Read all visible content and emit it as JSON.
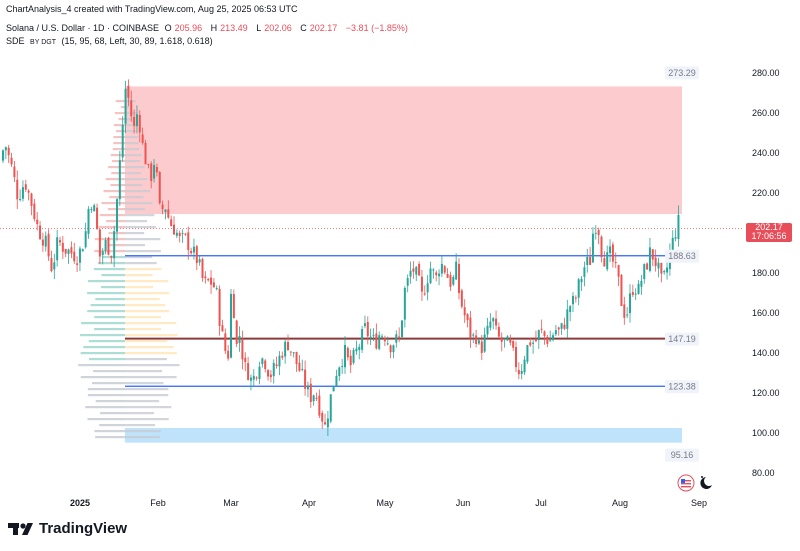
{
  "header": {
    "caption": "ChartAnalysis_4 created with TradingView.com, Aug 25, 2025 06:53 UTC"
  },
  "legend": {
    "symbol": "Solana / U.S. Dollar · 1D · COINBASE",
    "open_label": "O",
    "open": "205.96",
    "high_label": "H",
    "high": "213.49",
    "low_label": "L",
    "low": "202.06",
    "close_label": "C",
    "close": "202.17",
    "change": "−3.81 (−1.85%)",
    "indicator_name": "SDE",
    "indicator_by": "BY DGT",
    "indicator_params": "(15, 95, 68, Left, 30, 89, 1.618, 0.618)"
  },
  "price_badge": {
    "price": "202.17",
    "countdown": "17:06:56"
  },
  "footer": {
    "brand": "TradingView"
  },
  "chart_data": {
    "type": "candlestick",
    "y_axis": {
      "ticks": [
        80,
        100,
        120,
        140,
        160,
        180,
        200,
        220,
        240,
        260,
        280
      ],
      "range": [
        73,
        283
      ],
      "side": "right"
    },
    "x_axis": {
      "ticks": [
        "2025",
        "Feb",
        "Mar",
        "Apr",
        "May",
        "Jun",
        "Jul",
        "Aug",
        "Sep"
      ]
    },
    "levels": [
      {
        "value": 273.29,
        "label": "273.29",
        "kind": "zone-top"
      },
      {
        "value": 188.63,
        "label": "188.63",
        "kind": "line"
      },
      {
        "value": 147.19,
        "label": "147.19",
        "kind": "line"
      },
      {
        "value": 123.38,
        "label": "123.38",
        "kind": "line"
      },
      {
        "value": 95.16,
        "label": "95.16",
        "kind": "zone-bottom"
      }
    ],
    "zones": [
      {
        "name": "resistance",
        "from": 209.5,
        "to": 273.29,
        "color": "#fccbcd"
      },
      {
        "name": "support",
        "from": 95.16,
        "to": 102.5,
        "color": "#bfe3fb"
      }
    ],
    "last_price": 202.17,
    "colors": {
      "up": "#26a69a",
      "down": "#ef5350",
      "line_blue": "#2962ff",
      "line_brown": "#8b3a3a",
      "profile_green": "#9fd8cf",
      "profile_red": "#f4b8b8",
      "profile_gray": "#c7cbd3",
      "profile_orange": "#ffe5b4"
    },
    "price_path": [
      [
        0,
        236
      ],
      [
        5,
        245
      ],
      [
        12,
        232
      ],
      [
        18,
        218
      ],
      [
        25,
        226
      ],
      [
        32,
        214
      ],
      [
        38,
        202
      ],
      [
        45,
        196
      ],
      [
        52,
        182
      ],
      [
        58,
        196
      ],
      [
        65,
        192
      ],
      [
        72,
        190
      ],
      [
        78,
        188
      ],
      [
        85,
        198
      ],
      [
        90,
        218
      ],
      [
        95,
        210
      ],
      [
        100,
        188
      ],
      [
        106,
        195
      ],
      [
        112,
        190
      ],
      [
        118,
        222
      ],
      [
        122,
        250
      ],
      [
        126,
        275
      ],
      [
        130,
        262
      ],
      [
        134,
        252
      ],
      [
        138,
        262
      ],
      [
        142,
        245
      ],
      [
        146,
        236
      ],
      [
        150,
        226
      ],
      [
        155,
        238
      ],
      [
        160,
        210
      ],
      [
        165,
        214
      ],
      [
        170,
        205
      ],
      [
        175,
        202
      ],
      [
        180,
        196
      ],
      [
        186,
        197
      ],
      [
        192,
        191
      ],
      [
        198,
        186
      ],
      [
        204,
        174
      ],
      [
        210,
        176
      ],
      [
        216,
        172
      ],
      [
        220,
        156
      ],
      [
        224,
        143
      ],
      [
        228,
        138
      ],
      [
        232,
        179
      ],
      [
        236,
        142
      ],
      [
        240,
        150
      ],
      [
        244,
        133
      ],
      [
        248,
        131
      ],
      [
        252,
        125
      ],
      [
        256,
        131
      ],
      [
        260,
        138
      ],
      [
        265,
        136
      ],
      [
        270,
        129
      ],
      [
        276,
        133
      ],
      [
        282,
        141
      ],
      [
        288,
        145
      ],
      [
        294,
        138
      ],
      [
        300,
        131
      ],
      [
        305,
        124
      ],
      [
        310,
        118
      ],
      [
        315,
        121
      ],
      [
        320,
        112
      ],
      [
        325,
        103
      ],
      [
        330,
        116
      ],
      [
        335,
        129
      ],
      [
        340,
        136
      ],
      [
        345,
        140
      ],
      [
        350,
        133
      ],
      [
        355,
        139
      ],
      [
        360,
        145
      ],
      [
        365,
        152
      ],
      [
        370,
        148
      ],
      [
        375,
        145
      ],
      [
        380,
        150
      ],
      [
        385,
        149
      ],
      [
        390,
        144
      ],
      [
        395,
        146
      ],
      [
        400,
        147
      ],
      [
        404,
        170
      ],
      [
        408,
        176
      ],
      [
        412,
        183
      ],
      [
        418,
        177
      ],
      [
        422,
        168
      ],
      [
        426,
        175
      ],
      [
        430,
        183
      ],
      [
        436,
        177
      ],
      [
        440,
        185
      ],
      [
        444,
        183
      ],
      [
        448,
        178
      ],
      [
        452,
        174
      ],
      [
        456,
        182
      ],
      [
        460,
        167
      ],
      [
        464,
        160
      ],
      [
        468,
        153
      ],
      [
        472,
        147
      ],
      [
        476,
        149
      ],
      [
        480,
        141
      ],
      [
        484,
        146
      ],
      [
        488,
        151
      ],
      [
        492,
        158
      ],
      [
        496,
        150
      ],
      [
        500,
        146
      ],
      [
        505,
        145
      ],
      [
        510,
        143
      ],
      [
        515,
        136
      ],
      [
        520,
        130
      ],
      [
        525,
        140
      ],
      [
        530,
        146
      ],
      [
        535,
        145
      ],
      [
        540,
        151
      ],
      [
        545,
        148
      ],
      [
        550,
        146
      ],
      [
        555,
        152
      ],
      [
        560,
        150
      ],
      [
        565,
        156
      ],
      [
        570,
        164
      ],
      [
        575,
        166
      ],
      [
        580,
        176
      ],
      [
        585,
        184
      ],
      [
        590,
        186
      ],
      [
        594,
        205
      ],
      [
        598,
        204
      ],
      [
        602,
        190
      ],
      [
        606,
        186
      ],
      [
        610,
        189
      ],
      [
        614,
        184
      ],
      [
        618,
        177
      ],
      [
        622,
        164
      ],
      [
        626,
        158
      ],
      [
        630,
        167
      ],
      [
        634,
        175
      ],
      [
        638,
        170
      ],
      [
        642,
        178
      ],
      [
        646,
        183
      ],
      [
        650,
        190
      ],
      [
        654,
        188
      ],
      [
        658,
        182
      ],
      [
        662,
        174
      ],
      [
        666,
        180
      ],
      [
        670,
        190
      ],
      [
        674,
        198
      ],
      [
        678,
        206
      ],
      [
        681,
        202
      ]
    ]
  }
}
